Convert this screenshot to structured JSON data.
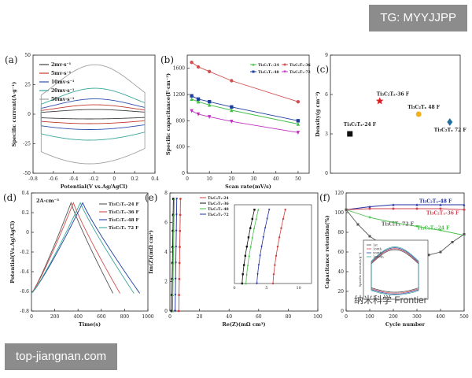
{
  "watermarks": {
    "top": "TG: MYYJJPP",
    "bottom": "top-jiangnan.com",
    "middle": "纳米科学 Frontier"
  },
  "chart_data": [
    {
      "id": "a",
      "type": "line",
      "panel_label": "(a)",
      "xlabel": "Potential(V  vs.Ag/AgCl)",
      "ylabel": "Specific current(A·g⁻¹)",
      "xlim": [
        -0.8,
        0.4
      ],
      "ylim": [
        -50,
        50
      ],
      "xticks": [
        -0.8,
        -0.6,
        -0.4,
        -0.2,
        0.0,
        0.2,
        0.4
      ],
      "yticks": [
        -50,
        -25,
        0,
        25,
        50
      ],
      "legend": [
        "2mv·s⁻¹",
        "5mv·s⁻¹",
        "10mv·s⁻¹",
        "20mv·s⁻¹",
        "50mv·s⁻¹"
      ],
      "colors": [
        "#3f3f3f",
        "#c0392b",
        "#3050b0",
        "#3aa89a",
        "#a0a0a0"
      ],
      "amplitudes": [
        4,
        8,
        13,
        22,
        42
      ]
    },
    {
      "id": "b",
      "type": "line",
      "panel_label": "(b)",
      "xlabel": "Scan rate(mV/s)",
      "ylabel": "Specific capacitance(F·cm⁻³)",
      "xlim": [
        0,
        55
      ],
      "ylim": [
        0,
        1800
      ],
      "xticks": [
        0,
        10,
        20,
        30,
        40,
        50
      ],
      "yticks": [
        0,
        400,
        800,
        1200,
        1600
      ],
      "x": [
        2,
        5,
        10,
        20,
        50
      ],
      "series": [
        {
          "name": "Ti₃C₂Tₓ-24",
          "color": "#44c044",
          "marker": "triangle",
          "values": [
            1130,
            1090,
            1040,
            960,
            750
          ]
        },
        {
          "name": "Ti₃C₂Tₓ-36",
          "color": "#d0504f",
          "marker": "circle",
          "values": [
            1690,
            1620,
            1550,
            1410,
            1090
          ]
        },
        {
          "name": "Ti₃C₂Tₓ-48",
          "color": "#2040a0",
          "marker": "square",
          "values": [
            1180,
            1130,
            1090,
            1010,
            800
          ]
        },
        {
          "name": "Ti₃C₂Tₓ-72",
          "color": "#c030c0",
          "marker": "triangle-down",
          "values": [
            950,
            900,
            860,
            790,
            620
          ]
        }
      ]
    },
    {
      "id": "c",
      "type": "scatter",
      "panel_label": "(c)",
      "ylabel": "Density(g cm⁻³)",
      "ylim": [
        0,
        9
      ],
      "yticks": [
        0,
        3,
        6,
        9
      ],
      "points": [
        {
          "label": "Ti₃C₂Tₓ-24 F",
          "y": 3.0,
          "color": "#111111",
          "marker": "square"
        },
        {
          "label": "Ti₃C₂Tₓ-36 F",
          "y": 5.5,
          "color": "#e02020",
          "marker": "star"
        },
        {
          "label": "Ti₃C₂Tₓ 48 F",
          "y": 4.5,
          "color": "#f0b020",
          "marker": "circle"
        },
        {
          "label": "Ti₃C₂Tₓ 72 F",
          "y": 3.9,
          "color": "#2070a0",
          "marker": "diamond"
        }
      ]
    },
    {
      "id": "d",
      "type": "line",
      "panel_label": "(d)",
      "xlabel": "Time(s)",
      "ylabel": "Potential(Vs.Ag/AgCl)",
      "annotation": "2A·cm⁻³",
      "xlim": [
        0,
        1000
      ],
      "ylim": [
        -0.8,
        0.4
      ],
      "xticks": [
        0,
        200,
        400,
        600,
        800,
        1000
      ],
      "yticks": [
        -0.8,
        -0.6,
        -0.4,
        -0.2,
        0.0,
        0.2,
        0.4
      ],
      "series": [
        {
          "name": "Ti₃C₂Tₓ-24 F",
          "color": "#555555",
          "peak": 340,
          "end": 700
        },
        {
          "name": "Ti₃C₂Tₓ-36 F",
          "color": "#d0504f",
          "peak": 360,
          "end": 760
        },
        {
          "name": "Ti₃C₂Tₓ-48 F",
          "color": "#2040a0",
          "peak": 440,
          "end": 930
        },
        {
          "name": "Ti₃C₂Tₓ 72 F",
          "color": "#3aa89a",
          "peak": 420,
          "end": 880
        }
      ]
    },
    {
      "id": "e",
      "type": "line",
      "panel_label": "(e)",
      "xlabel": "Re(Z)(mΩ cm³)",
      "ylabel": "Im(Z)(mΩ cm³)",
      "xlim": [
        0,
        100
      ],
      "ylim": [
        0,
        8
      ],
      "xticks": [
        0,
        20,
        40,
        60,
        80,
        100
      ],
      "yticks": [
        0,
        2,
        4,
        6,
        8
      ],
      "inset_xticks": [
        0,
        5,
        10
      ],
      "series": [
        {
          "name": "Ti₃C₂Tₓ-24",
          "color": "#d04040",
          "marker": "circle",
          "x0": 6.0
        },
        {
          "name": "Ti₃C₂Tₓ-36",
          "color": "#111111",
          "marker": "square",
          "x0": 1.2
        },
        {
          "name": "Ti₃C₂Tₓ-48",
          "color": "#44c044",
          "marker": "triangle",
          "x0": 1.8
        },
        {
          "name": "Ti₃C₂Tₓ-72",
          "color": "#2030a0",
          "marker": "triangle-down",
          "x0": 3.5
        }
      ]
    },
    {
      "id": "f",
      "type": "line",
      "panel_label": "(f)",
      "xlabel": "Cycle number",
      "ylabel": "Capacitance retention(%)",
      "xlim": [
        0,
        500
      ],
      "ylim": [
        0,
        120
      ],
      "xticks": [
        0,
        100,
        200,
        300,
        400,
        500
      ],
      "yticks": [
        0,
        20,
        40,
        60,
        80,
        100,
        120
      ],
      "inset_legend": [
        "1st",
        "100th",
        "500th",
        "1000th"
      ],
      "inset_ylabel": "Specific current(A·g⁻¹)",
      "series": [
        {
          "name": "Ti₃C₂Tₓ-48 F",
          "color": "#2030a0",
          "marker": "triangle",
          "x": [
            0,
            100,
            200,
            300,
            400,
            500
          ],
          "values": [
            103,
            106,
            108,
            108,
            108,
            108
          ]
        },
        {
          "name": "Ti₃C₂Tₓ-36 F",
          "color": "#d04050",
          "marker": "circle",
          "x": [
            0,
            100,
            200,
            300,
            400,
            500
          ],
          "values": [
            103,
            104,
            104,
            104,
            104,
            103
          ]
        },
        {
          "name": "Ti₃C₂Tₓ-24 F",
          "color": "#44c044",
          "marker": "triangle-down",
          "x": [
            0,
            100,
            200,
            300,
            400,
            500
          ],
          "values": [
            103,
            95,
            90,
            86,
            82,
            77
          ]
        },
        {
          "name": "Ti₃C₂Tₓ 72 F",
          "color": "#555555",
          "marker": "square",
          "x": [
            0,
            50,
            100,
            150,
            200,
            250,
            300,
            350,
            400,
            450,
            500
          ],
          "values": [
            103,
            88,
            76,
            68,
            60,
            56,
            55,
            57,
            60,
            70,
            78
          ]
        }
      ]
    }
  ]
}
